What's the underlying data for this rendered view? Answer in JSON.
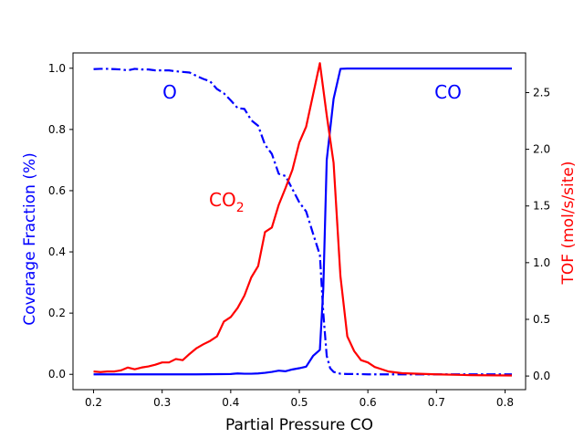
{
  "chart_data": {
    "type": "line",
    "xlabel": "Partial Pressure CO",
    "ylabel_left": "Coverage Fraction (%)",
    "ylabel_right": "TOF (mol/s/site)",
    "xlim": [
      0.17,
      0.83
    ],
    "ylim_left": [
      -0.05,
      1.05
    ],
    "ylim_right": [
      -0.12,
      2.85
    ],
    "x_ticks": [
      "0.2",
      "0.3",
      "0.4",
      "0.5",
      "0.6",
      "0.7",
      "0.8"
    ],
    "y_ticks_left": [
      "0.0",
      "0.2",
      "0.4",
      "0.6",
      "0.8",
      "1.0"
    ],
    "y_ticks_right": [
      "0.0",
      "0.5",
      "1.0",
      "1.5",
      "2.0",
      "2.5"
    ],
    "grid": false,
    "colors": {
      "left_axis": "#0000ff",
      "right_axis": "#ff0000",
      "o": "#0000ff",
      "co": "#0000ff",
      "co2": "#ff0000"
    },
    "annotations": {
      "o": "O",
      "co": "CO",
      "co2_main": "CO",
      "co2_sub": "2"
    },
    "series": [
      {
        "key": "O",
        "axis": "left",
        "style": "dashdot",
        "color": "#0000ff",
        "x": [
          0.2,
          0.21,
          0.22,
          0.23,
          0.24,
          0.25,
          0.26,
          0.27,
          0.28,
          0.29,
          0.3,
          0.31,
          0.32,
          0.33,
          0.34,
          0.35,
          0.36,
          0.37,
          0.38,
          0.39,
          0.4,
          0.41,
          0.42,
          0.43,
          0.44,
          0.45,
          0.46,
          0.47,
          0.48,
          0.49,
          0.5,
          0.51,
          0.52,
          0.53,
          0.535,
          0.54,
          0.545,
          0.55,
          0.56,
          0.57,
          0.58,
          0.6,
          0.62,
          0.65,
          0.7,
          0.75,
          0.81
        ],
        "y": [
          0.997,
          0.998,
          0.998,
          0.997,
          0.996,
          0.993,
          0.998,
          0.996,
          0.996,
          0.993,
          0.993,
          0.993,
          0.99,
          0.988,
          0.986,
          0.975,
          0.965,
          0.957,
          0.932,
          0.918,
          0.895,
          0.87,
          0.867,
          0.83,
          0.812,
          0.75,
          0.72,
          0.655,
          0.648,
          0.605,
          0.562,
          0.532,
          0.46,
          0.39,
          0.2,
          0.06,
          0.02,
          0.008,
          0.002,
          0.001,
          0.001,
          0,
          0,
          0,
          0,
          0,
          0
        ]
      },
      {
        "key": "CO",
        "axis": "left",
        "style": "solid",
        "color": "#0000ff",
        "x": [
          0.2,
          0.25,
          0.3,
          0.35,
          0.4,
          0.41,
          0.42,
          0.43,
          0.44,
          0.45,
          0.46,
          0.47,
          0.48,
          0.49,
          0.5,
          0.51,
          0.52,
          0.53,
          0.535,
          0.54,
          0.55,
          0.56,
          0.57,
          0.6,
          0.65,
          0.7,
          0.75,
          0.81
        ],
        "y": [
          0,
          0,
          0,
          0,
          0.001,
          0.003,
          0.002,
          0.002,
          0.003,
          0.005,
          0.008,
          0.012,
          0.01,
          0.016,
          0.02,
          0.025,
          0.06,
          0.08,
          0.28,
          0.7,
          0.9,
          0.998,
          0.999,
          0.999,
          0.999,
          0.999,
          0.999,
          0.999
        ]
      },
      {
        "key": "CO2",
        "axis": "right",
        "style": "solid",
        "color": "#ff0000",
        "x": [
          0.2,
          0.21,
          0.22,
          0.23,
          0.24,
          0.25,
          0.26,
          0.27,
          0.28,
          0.29,
          0.3,
          0.31,
          0.32,
          0.33,
          0.34,
          0.35,
          0.36,
          0.37,
          0.38,
          0.39,
          0.4,
          0.41,
          0.42,
          0.43,
          0.44,
          0.45,
          0.46,
          0.47,
          0.48,
          0.49,
          0.5,
          0.51,
          0.52,
          0.53,
          0.54,
          0.55,
          0.56,
          0.57,
          0.58,
          0.59,
          0.6,
          0.61,
          0.62,
          0.63,
          0.65,
          0.7,
          0.75,
          0.81
        ],
        "y": [
          0.04,
          0.035,
          0.04,
          0.04,
          0.05,
          0.075,
          0.06,
          0.075,
          0.085,
          0.1,
          0.12,
          0.12,
          0.15,
          0.14,
          0.195,
          0.245,
          0.28,
          0.31,
          0.35,
          0.48,
          0.52,
          0.6,
          0.71,
          0.87,
          0.97,
          1.27,
          1.31,
          1.51,
          1.66,
          1.82,
          2.06,
          2.2,
          2.48,
          2.76,
          2.3,
          1.88,
          0.88,
          0.35,
          0.22,
          0.14,
          0.12,
          0.08,
          0.06,
          0.04,
          0.025,
          0.015,
          0.008,
          0.005
        ]
      }
    ]
  }
}
